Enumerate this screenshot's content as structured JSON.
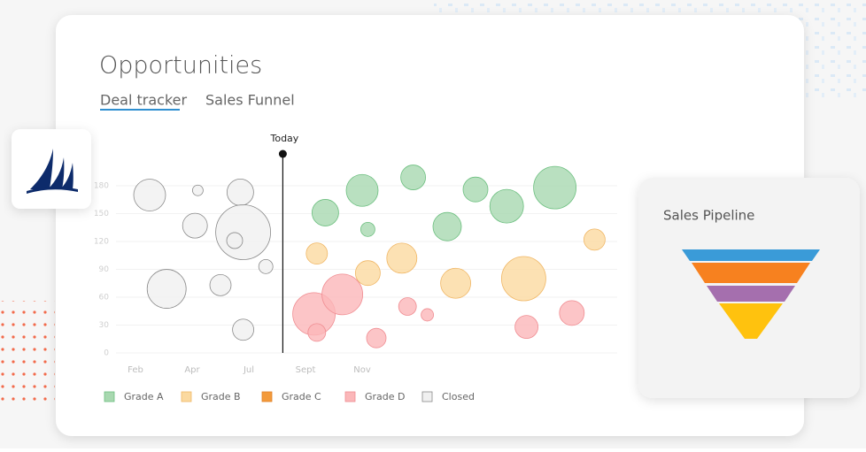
{
  "header": {
    "title": "Opportunities",
    "tabs": [
      "Deal tracker",
      "Sales Funnel"
    ]
  },
  "pipeline_card": {
    "title": "Sales Pipeline"
  },
  "chart_data": {
    "type": "bubble",
    "xlim": [
      0,
      18
    ],
    "ylim": [
      0,
      210
    ],
    "xticks": [
      {
        "value": 1,
        "label": "Feb"
      },
      {
        "value": 3,
        "label": "Apr"
      },
      {
        "value": 5,
        "label": "Jul"
      },
      {
        "value": 7,
        "label": "Sept"
      },
      {
        "value": 9,
        "label": "Nov"
      }
    ],
    "yticks": [
      0,
      30,
      60,
      90,
      120,
      150,
      180
    ],
    "grid": true,
    "annotations": [
      {
        "text": "Today",
        "x": 6.2
      }
    ],
    "series": [
      {
        "name": "Grade A",
        "color": "#a8d8b0",
        "stroke": "#6cbf7f",
        "x": [
          9.0,
          10.8,
          13.0,
          15.8,
          7.7,
          9.2,
          12.0,
          14.1
        ],
        "values": [
          175,
          189,
          176,
          178,
          151,
          133,
          136,
          158
        ],
        "sizes": [
          18,
          14,
          14,
          24,
          15,
          8,
          16,
          19
        ]
      },
      {
        "name": "Grade B",
        "color": "#fbd9a0",
        "stroke": "#f0b766",
        "x": [
          7.4,
          10.4,
          9.2,
          12.3,
          14.7,
          17.2
        ],
        "values": [
          107,
          102,
          86,
          75,
          80,
          122
        ],
        "sizes": [
          12,
          17,
          14,
          17,
          25,
          12
        ]
      },
      {
        "name": "Grade C",
        "color": "#f39a3b",
        "stroke": "#e0822a",
        "x": [],
        "values": [],
        "sizes": []
      },
      {
        "name": "Grade D",
        "color": "#fbb7b9",
        "stroke": "#f08d92",
        "x": [
          7.3,
          8.3,
          7.4,
          10.6,
          11.3,
          9.5,
          14.8,
          16.4
        ],
        "values": [
          42,
          63,
          22,
          50,
          41,
          16,
          28,
          43
        ],
        "sizes": [
          24,
          23,
          10,
          10,
          7,
          11,
          13,
          14
        ]
      },
      {
        "name": "Closed",
        "color": "#f0f0f0",
        "stroke": "#8a8a8a",
        "x": [
          1.5,
          3.2,
          4.7,
          3.1,
          4.8,
          4.5,
          5.6,
          2.1,
          4.0,
          4.8
        ],
        "values": [
          170,
          175,
          173,
          137,
          130,
          121,
          93,
          69,
          73,
          25
        ],
        "sizes": [
          18,
          6,
          15,
          14,
          31,
          9,
          8,
          22,
          12,
          12
        ]
      }
    ]
  }
}
